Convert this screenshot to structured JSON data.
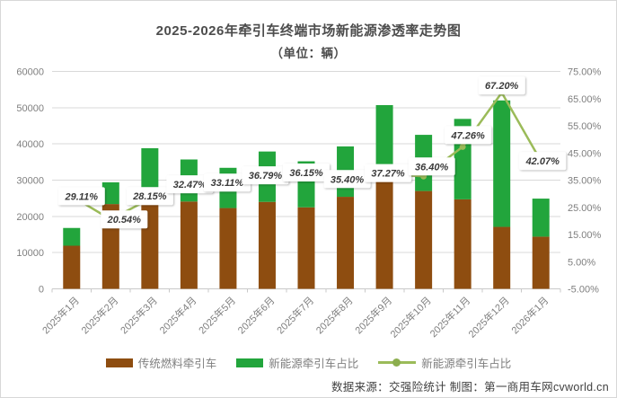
{
  "title": {
    "line1": "2025-2026年牵引车终端市场新能源渗透率走势图",
    "line2": "（单位：辆）"
  },
  "chart_data": {
    "type": "bar",
    "subtype": "stacked-bars-with-percentage-line",
    "categories": [
      "2025年1月",
      "2025年2月",
      "2025年3月",
      "2025年4月",
      "2025年5月",
      "2025年6月",
      "2025年7月",
      "2025年8月",
      "2025年9月",
      "2025年10月",
      "2025年11月",
      "2025年12月",
      "2026年1月"
    ],
    "series": [
      {
        "name": "传统燃料牵引车",
        "type": "bar",
        "color": "#8E4D10",
        "axis": "left",
        "values": [
          11900,
          23400,
          27900,
          24100,
          22300,
          24000,
          22500,
          25400,
          31800,
          27000,
          24700,
          17100,
          14400
        ]
      },
      {
        "name": "新能源牵引车占比",
        "type": "bar",
        "color": "#22A53C",
        "axis": "left",
        "values": [
          4900,
          6000,
          10900,
          11600,
          11100,
          13900,
          12700,
          13900,
          18900,
          15500,
          22200,
          34900,
          10500
        ]
      },
      {
        "name": "新能源牵引车占比",
        "type": "line",
        "color": "#9BBB59",
        "axis": "right",
        "values": [
          29.11,
          20.54,
          28.15,
          32.47,
          33.11,
          36.79,
          36.15,
          35.4,
          37.27,
          36.4,
          47.26,
          67.2,
          42.07
        ]
      }
    ],
    "data_labels": [
      "29.11%",
      "20.54%",
      "28.15%",
      "32.47%",
      "33.11%",
      "36.79%",
      "36.15%",
      "35.40%",
      "37.27%",
      "36.40%",
      "47.26%",
      "67.20%",
      "42.07%"
    ],
    "left_axis": {
      "min": 0,
      "max": 60000,
      "step": 10000,
      "ticks": [
        "0",
        "10000",
        "20000",
        "30000",
        "40000",
        "50000",
        "60000"
      ]
    },
    "right_axis": {
      "min": -5,
      "max": 75,
      "step": 10,
      "ticks": [
        "-5.00%",
        "5.00%",
        "15.00%",
        "25.00%",
        "35.00%",
        "45.00%",
        "55.00%",
        "65.00%",
        "75.00%"
      ]
    },
    "grid": true,
    "legend_position": "bottom"
  },
  "legend": {
    "items": [
      {
        "label": "传统燃料牵引车",
        "swatch": "bar",
        "color": "#8E4D10"
      },
      {
        "label": "新能源牵引车占比",
        "swatch": "bar",
        "color": "#22A53C"
      },
      {
        "label": "新能源牵引车占比",
        "swatch": "line",
        "color": "#9BBB59",
        "marker_color": "#8CAE4E"
      }
    ]
  },
  "footer": {
    "source_text": "数据来源：交强险统计 制图：第一商用车网cvworld.cn"
  },
  "colors": {
    "traditional_bar": "#8E4D10",
    "new_energy_bar": "#22A53C",
    "trend_line": "#9BBB59",
    "gridline": "#d9d9d9",
    "axis_text": "#7f7f7f",
    "data_label_text": "#3a3a3a",
    "title_text": "#4d4d4d"
  }
}
